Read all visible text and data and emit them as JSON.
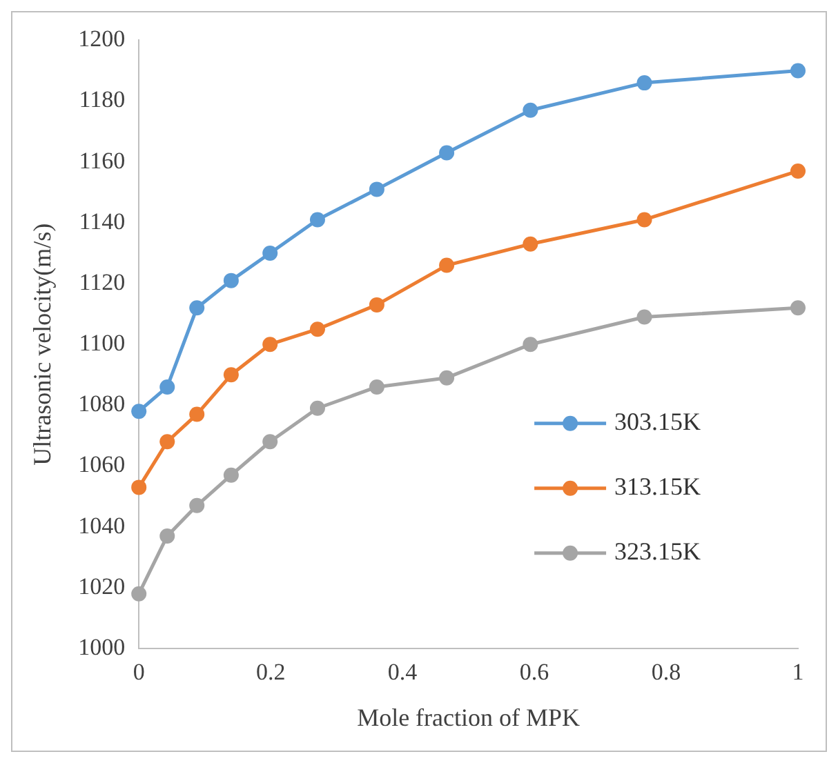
{
  "chart_data": {
    "type": "line",
    "xlabel": "Mole fraction of MPK",
    "ylabel": "Ultrasonic velocity(m/s)",
    "x": [
      0,
      0.043,
      0.088,
      0.14,
      0.199,
      0.271,
      0.361,
      0.467,
      0.594,
      0.767,
      1
    ],
    "series": [
      {
        "name": "303.15K",
        "color": "#5b9bd5",
        "values": [
          1078,
          1086,
          1112,
          1121,
          1130,
          1141,
          1151,
          1163,
          1177,
          1186,
          1190
        ]
      },
      {
        "name": "313.15K",
        "color": "#ed7d31",
        "values": [
          1053,
          1068,
          1077,
          1090,
          1100,
          1105,
          1113,
          1126,
          1133,
          1141,
          1157
        ]
      },
      {
        "name": "323.15K",
        "color": "#a5a5a5",
        "values": [
          1018,
          1037,
          1047,
          1057,
          1068,
          1079,
          1086,
          1089,
          1100,
          1109,
          1112
        ]
      }
    ],
    "xlim": [
      0,
      1
    ],
    "xticks": [
      0,
      0.2,
      0.4,
      0.6,
      0.8,
      1
    ],
    "ylim": [
      1000,
      1200
    ],
    "yticks": [
      1000,
      1020,
      1040,
      1060,
      1080,
      1100,
      1120,
      1140,
      1160,
      1180,
      1200
    ],
    "grid": false,
    "legend": "right",
    "marker": "circle",
    "line_style": "solid"
  }
}
